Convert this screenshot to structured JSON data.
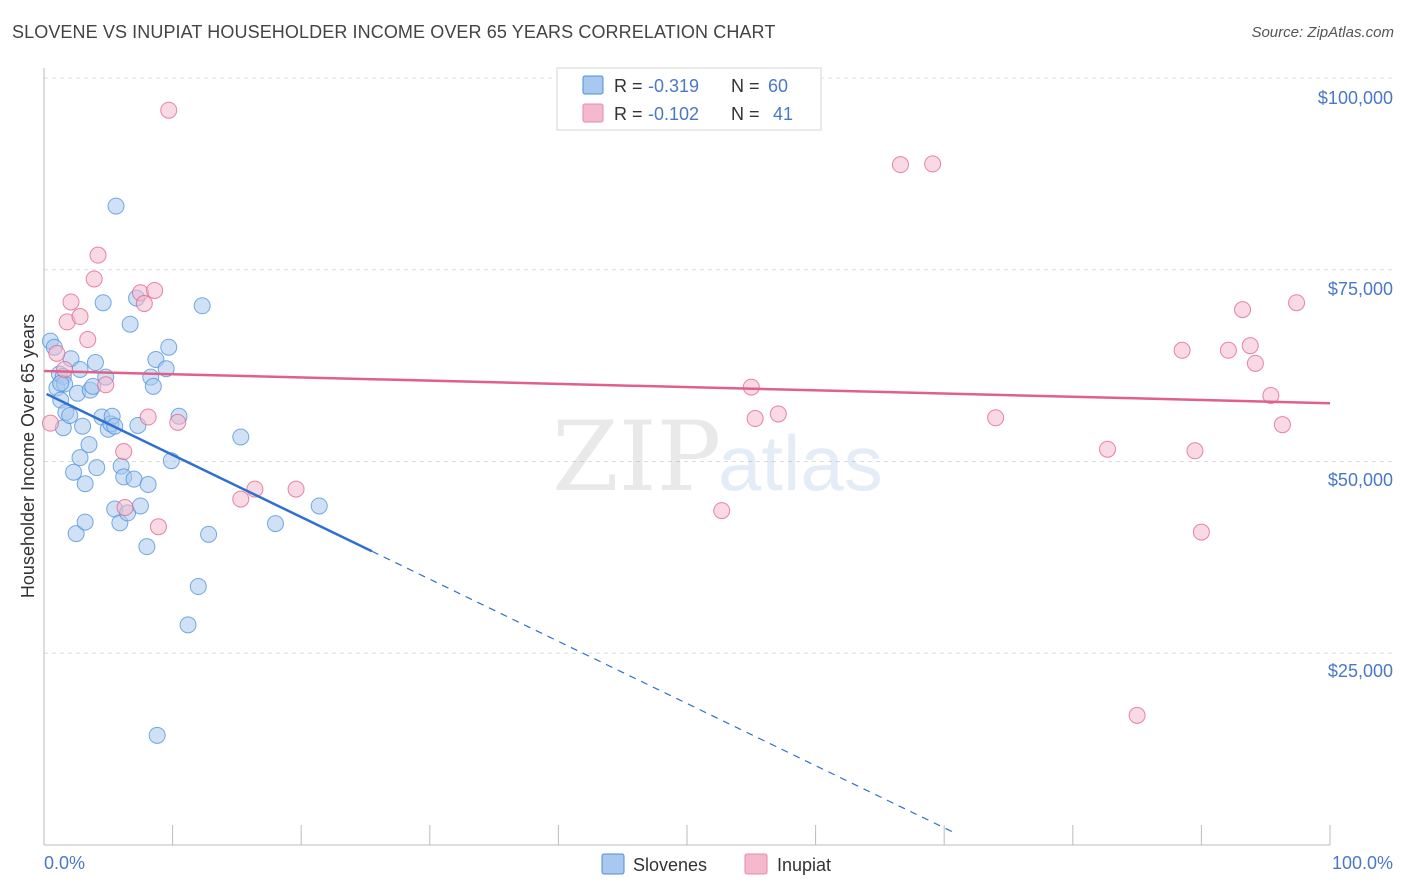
{
  "header": {
    "title": "SLOVENE VS INUPIAT HOUSEHOLDER INCOME OVER 65 YEARS CORRELATION CHART",
    "source": "Source: ZipAtlas.com"
  },
  "watermark": {
    "zip": "ZIP",
    "atlas": "atlas"
  },
  "legend": {
    "r_label": "R =",
    "n_label": "N =",
    "rows": [
      {
        "r": "-0.319",
        "n": "60",
        "color": "#4a90d9"
      },
      {
        "r": "-0.102",
        "n": "41",
        "color": "#e58aa8"
      }
    ]
  },
  "bottom_legend": {
    "series1": "Slovenes",
    "series2": "Inupiat"
  },
  "chart_data": {
    "type": "scatter",
    "title": "SLOVENE VS INUPIAT HOUSEHOLDER INCOME OVER 65 YEARS CORRELATION CHART",
    "xlabel": "",
    "ylabel": "Householder Income Over 65 years",
    "xlim": [
      0,
      100
    ],
    "ylim": [
      0,
      100000
    ],
    "x_tick_labels": [
      "0.0%",
      "100.0%"
    ],
    "y_ticks": [
      25000,
      50000,
      75000,
      100000
    ],
    "y_tick_labels": [
      "$25,000",
      "$50,000",
      "$75,000",
      "$100,000"
    ],
    "series": [
      {
        "name": "Slovenes",
        "color": "#4a90d9",
        "fill": "#a9c8ef",
        "trend": {
          "x0": 0.2,
          "y0": 58800,
          "x1": 25.5,
          "y1": 38300,
          "dash_to_x": 71
        },
        "points": [
          [
            0.5,
            65700
          ],
          [
            0.8,
            64900
          ],
          [
            1.0,
            59600
          ],
          [
            1.2,
            61400
          ],
          [
            1.3,
            58000
          ],
          [
            1.5,
            61100
          ],
          [
            1.6,
            60100
          ],
          [
            1.5,
            54400
          ],
          [
            1.7,
            56400
          ],
          [
            2.0,
            56000
          ],
          [
            2.1,
            63400
          ],
          [
            2.3,
            48600
          ],
          [
            2.5,
            40600
          ],
          [
            2.6,
            58900
          ],
          [
            2.8,
            50500
          ],
          [
            3.0,
            54600
          ],
          [
            3.2,
            47100
          ],
          [
            3.2,
            42100
          ],
          [
            3.5,
            52200
          ],
          [
            3.6,
            59300
          ],
          [
            3.8,
            59800
          ],
          [
            4.0,
            62900
          ],
          [
            4.1,
            49200
          ],
          [
            4.5,
            55800
          ],
          [
            4.6,
            70700
          ],
          [
            4.8,
            61000
          ],
          [
            5.0,
            54200
          ],
          [
            5.2,
            54900
          ],
          [
            5.3,
            55900
          ],
          [
            5.5,
            43800
          ],
          [
            5.6,
            83300
          ],
          [
            5.9,
            42000
          ],
          [
            6.0,
            49400
          ],
          [
            6.2,
            48000
          ],
          [
            6.5,
            43300
          ],
          [
            6.7,
            67900
          ],
          [
            7.0,
            47700
          ],
          [
            7.2,
            71300
          ],
          [
            7.3,
            54700
          ],
          [
            7.5,
            44200
          ],
          [
            8.0,
            38900
          ],
          [
            8.1,
            47000
          ],
          [
            8.3,
            61000
          ],
          [
            8.5,
            59800
          ],
          [
            8.7,
            63300
          ],
          [
            8.8,
            14300
          ],
          [
            9.5,
            62100
          ],
          [
            9.7,
            64900
          ],
          [
            9.9,
            50100
          ],
          [
            10.5,
            55900
          ],
          [
            11.2,
            28700
          ],
          [
            12.0,
            33700
          ],
          [
            12.3,
            70300
          ],
          [
            12.8,
            40500
          ],
          [
            15.3,
            53200
          ],
          [
            18.0,
            41900
          ],
          [
            21.4,
            44200
          ],
          [
            5.5,
            54600
          ],
          [
            2.8,
            62000
          ],
          [
            1.3,
            60200
          ]
        ]
      },
      {
        "name": "Inupiat",
        "color": "#e0608a",
        "fill": "#f4b9cc",
        "trend": {
          "x0": 0.0,
          "y0": 61800,
          "x1": 100.0,
          "y1": 57600
        },
        "points": [
          [
            0.5,
            55000
          ],
          [
            1.0,
            64100
          ],
          [
            1.6,
            62000
          ],
          [
            1.8,
            68200
          ],
          [
            2.1,
            70800
          ],
          [
            2.8,
            68900
          ],
          [
            3.4,
            65900
          ],
          [
            3.9,
            73800
          ],
          [
            4.2,
            76900
          ],
          [
            4.8,
            60000
          ],
          [
            6.2,
            51300
          ],
          [
            6.3,
            44000
          ],
          [
            7.5,
            72000
          ],
          [
            7.8,
            70600
          ],
          [
            8.1,
            55800
          ],
          [
            8.6,
            72300
          ],
          [
            8.9,
            41500
          ],
          [
            9.7,
            95800
          ],
          [
            10.4,
            55100
          ],
          [
            15.3,
            45100
          ],
          [
            16.4,
            46400
          ],
          [
            19.6,
            46400
          ],
          [
            52.7,
            43600
          ],
          [
            55.0,
            59700
          ],
          [
            55.3,
            55600
          ],
          [
            57.1,
            56200
          ],
          [
            66.6,
            88700
          ],
          [
            69.1,
            88800
          ],
          [
            74.0,
            55700
          ],
          [
            82.7,
            51600
          ],
          [
            85.0,
            16900
          ],
          [
            88.5,
            64500
          ],
          [
            89.5,
            51400
          ],
          [
            90.0,
            40800
          ],
          [
            92.1,
            64500
          ],
          [
            93.2,
            69800
          ],
          [
            93.8,
            65100
          ],
          [
            94.2,
            62800
          ],
          [
            95.4,
            58600
          ],
          [
            96.3,
            54800
          ],
          [
            97.4,
            70700
          ]
        ]
      }
    ]
  }
}
